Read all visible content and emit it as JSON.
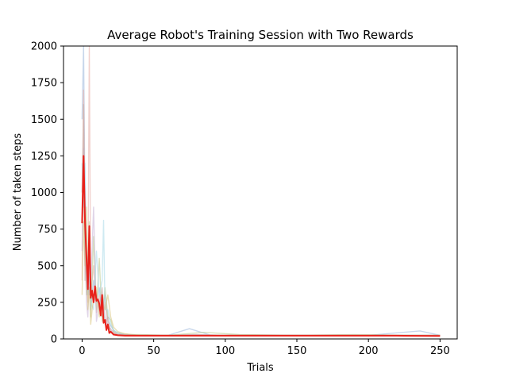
{
  "chart_data": {
    "type": "line",
    "title": "Average Robot's Training Session with Two Rewards",
    "xlabel": "Trials",
    "ylabel": "Number of taken steps",
    "xlim": [
      -13,
      262
    ],
    "ylim": [
      0,
      2000
    ],
    "xticks": [
      0,
      50,
      100,
      150,
      200,
      250
    ],
    "yticks": [
      0,
      250,
      500,
      750,
      1000,
      1250,
      1500,
      1750,
      2000
    ],
    "grid": false,
    "legend": "none",
    "colors": {
      "mean": "#e8221b",
      "runs": [
        "#9ab7da",
        "#e5a9a3",
        "#b9c98a",
        "#c7b3d6",
        "#a7d8e7",
        "#d9c27a",
        "#c2a6a0"
      ]
    },
    "mean_series": {
      "x": [
        0,
        1,
        2,
        3,
        4,
        5,
        6,
        7,
        8,
        9,
        10,
        11,
        12,
        13,
        14,
        15,
        16,
        17,
        18,
        19,
        20,
        22,
        25,
        30,
        40,
        60,
        80,
        100,
        130,
        160,
        190,
        220,
        250
      ],
      "y": [
        790,
        1250,
        800,
        560,
        340,
        770,
        280,
        330,
        250,
        360,
        260,
        270,
        240,
        160,
        300,
        110,
        130,
        60,
        100,
        40,
        50,
        30,
        25,
        22,
        22,
        22,
        22,
        22,
        22,
        22,
        22,
        22,
        20
      ]
    },
    "run_series": [
      {
        "x": [
          0,
          1,
          2,
          3,
          4,
          5,
          6,
          8,
          10,
          12,
          14,
          16,
          18,
          20,
          22,
          25,
          30,
          40,
          60,
          75,
          90,
          120,
          160,
          200,
          236,
          250
        ],
        "y": [
          1500,
          2000,
          900,
          500,
          300,
          650,
          200,
          400,
          250,
          350,
          200,
          300,
          120,
          90,
          60,
          40,
          30,
          25,
          25,
          70,
          25,
          25,
          25,
          25,
          55,
          25
        ]
      },
      {
        "x": [
          0,
          1,
          2,
          3,
          4,
          5,
          6,
          8,
          10,
          12,
          14,
          16,
          18,
          20,
          22,
          25,
          30,
          40,
          60,
          80,
          100,
          140,
          180,
          220,
          250
        ],
        "y": [
          400,
          1700,
          700,
          400,
          250,
          2000,
          300,
          500,
          180,
          300,
          150,
          250,
          100,
          60,
          50,
          30,
          30,
          25,
          25,
          30,
          25,
          25,
          25,
          25,
          25
        ]
      },
      {
        "x": [
          0,
          1,
          2,
          3,
          4,
          5,
          6,
          8,
          10,
          12,
          14,
          16,
          18,
          20,
          22,
          25,
          30,
          40,
          60,
          85,
          110,
          150,
          190,
          230,
          250
        ],
        "y": [
          800,
          1100,
          600,
          300,
          400,
          800,
          150,
          700,
          200,
          550,
          120,
          350,
          150,
          130,
          50,
          40,
          30,
          30,
          25,
          45,
          30,
          25,
          30,
          25,
          25
        ]
      },
      {
        "x": [
          0,
          1,
          2,
          3,
          4,
          5,
          6,
          8,
          10,
          12,
          14,
          16,
          18,
          20,
          22,
          25,
          30,
          40,
          60,
          80,
          100,
          140,
          180,
          220,
          250
        ],
        "y": [
          600,
          1300,
          1000,
          250,
          150,
          500,
          350,
          900,
          120,
          250,
          300,
          150,
          80,
          70,
          40,
          30,
          25,
          25,
          25,
          30,
          25,
          25,
          25,
          25,
          25
        ]
      },
      {
        "x": [
          0,
          1,
          2,
          3,
          4,
          5,
          6,
          8,
          10,
          12,
          14,
          15,
          16,
          18,
          20,
          22,
          25,
          30,
          40,
          60,
          80,
          100,
          140,
          180,
          220,
          250
        ],
        "y": [
          1200,
          900,
          1200,
          700,
          300,
          450,
          250,
          200,
          600,
          300,
          400,
          810,
          200,
          200,
          100,
          60,
          40,
          30,
          25,
          25,
          25,
          25,
          25,
          25,
          25,
          25
        ]
      },
      {
        "x": [
          0,
          1,
          2,
          3,
          4,
          5,
          6,
          8,
          10,
          12,
          14,
          16,
          18,
          20,
          22,
          25,
          30,
          40,
          60,
          80,
          100,
          140,
          180,
          220,
          250
        ],
        "y": [
          300,
          800,
          500,
          900,
          200,
          350,
          100,
          300,
          350,
          150,
          250,
          200,
          300,
          150,
          80,
          50,
          35,
          25,
          25,
          25,
          25,
          25,
          25,
          25,
          25
        ]
      },
      {
        "x": [
          0,
          1,
          2,
          3,
          4,
          5,
          6,
          8,
          10,
          12,
          14,
          16,
          18,
          20,
          22,
          25,
          30,
          40,
          60,
          80,
          100,
          140,
          180,
          220,
          250
        ],
        "y": [
          1000,
          1600,
          400,
          600,
          500,
          300,
          400,
          250,
          300,
          200,
          350,
          100,
          150,
          50,
          40,
          30,
          30,
          25,
          25,
          25,
          25,
          25,
          25,
          25,
          25
        ]
      }
    ]
  }
}
